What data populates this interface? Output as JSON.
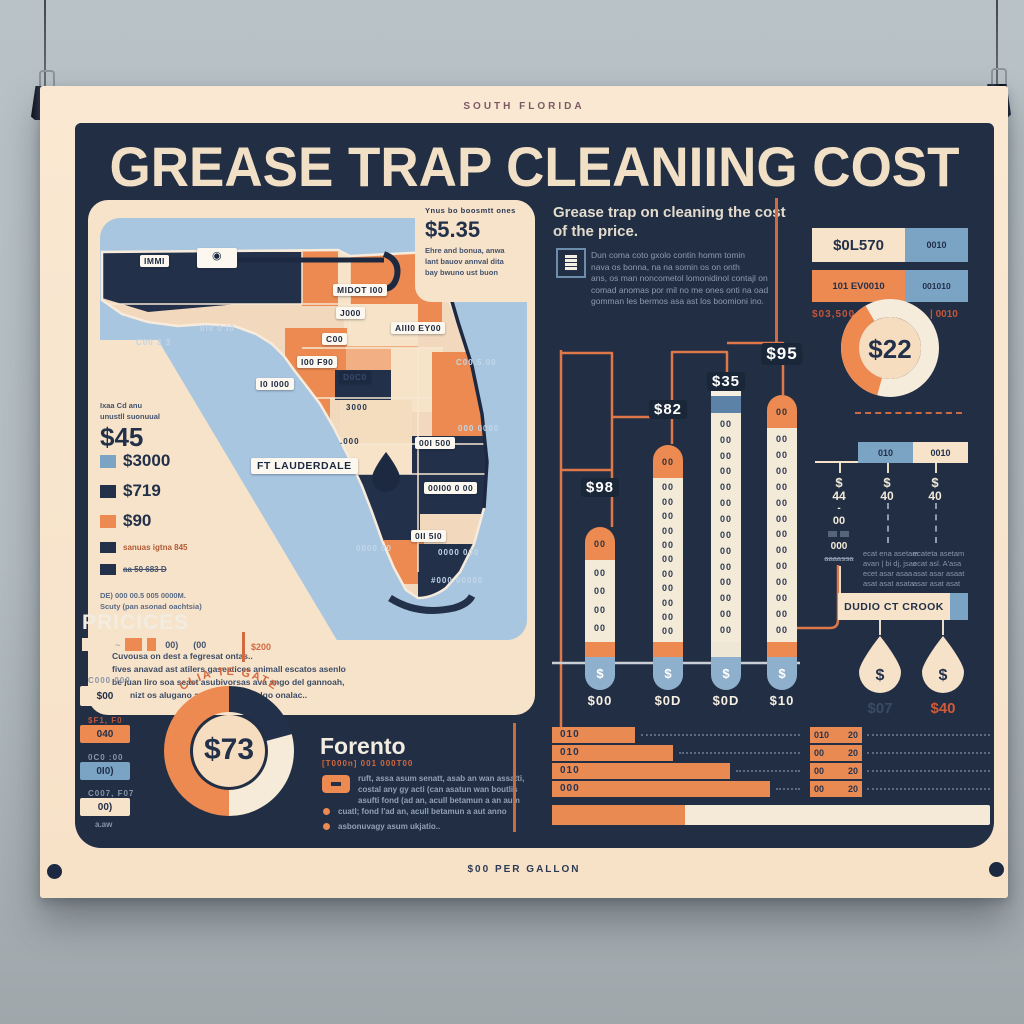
{
  "colors": {
    "navy": "#212e44",
    "cream": "#f7e3c9",
    "orange": "#ec8a51",
    "blue": "#7ba3c4",
    "water": "#a9c6e0",
    "wall": "#b3bcc0",
    "accent_red": "#d3693f"
  },
  "poster": {
    "top_label": "SOUTH FLORIDA",
    "title": "GREASE TRAP  CLEANIING COST",
    "footer_note": "$00 PER GALLON"
  },
  "map_panel": {
    "info_box": {
      "kicker": "Ynus bo boosmtt ones",
      "price": "$5.35",
      "lines": [
        "Ehre and bonua, anwa",
        "lant bauov annval dita",
        "bay bwuno ust buon"
      ]
    },
    "stat": {
      "note_lines": [
        "Ixaa Cd anu",
        "unustll suonuual"
      ],
      "price": "$45"
    },
    "legend": [
      {
        "swatch_color": "#7ba3c4",
        "label": "$3000"
      },
      {
        "swatch_color": "#22304a",
        "label": "$719"
      },
      {
        "swatch_color": "#ec8a51",
        "label": "$90"
      },
      {
        "swatch_color": "#22304a",
        "label": "sanuas igtna 845"
      },
      {
        "swatch_color": "#22304a",
        "label": "aa 50 683 D"
      }
    ],
    "footnote_lines": [
      "DE) 000 00.5 005 0000M.",
      "Scuty (pan asonad oachtsia)"
    ],
    "map_labels": [
      "IMMI",
      "MIDOT I00",
      "J000",
      "AIII0 EY00",
      "C00",
      "I00 F90",
      "I0 I000",
      "D0C0",
      "00I 500",
      "FT LAUDERDALE",
      "00I00 0 00",
      "0II 5I0"
    ],
    "map_chip_icon": "◉",
    "water_labels": [
      "0I0 0 I0",
      "C00 3 3",
      "C00.5.00",
      "000 0000",
      "0000 000",
      "#000 00000",
      "0000 00"
    ],
    "land_texts": [
      "3000",
      ".000"
    ],
    "paragraph_lines": [
      "Cuvousa on dest a fegresat ontas..",
      "fives anavad ast atilers gaseatices animall escatos asenlo",
      "be juan liro soa seast asubivorsas ava ango del gannoah,",
      "notanizt os alugano ania onlas gastalgo onalac.."
    ]
  },
  "intro": {
    "heading_lines": [
      "Grease trap on cleaning the cost",
      "of the price."
    ],
    "paragraph_lines": [
      "Dun coma coto gxolo contin homm tomin",
      "nava os bonna, na na somin os on onth",
      "ans, os man noncometol lomonidinol contajl on",
      "comad anomas por mil no me ones onti na oad",
      "gomman les bermos asa ast los boomioni ino."
    ]
  },
  "chart": {
    "bars": [
      {
        "price": "$98",
        "cap": "00",
        "rows": [
          "00",
          "00",
          "00",
          "00"
        ],
        "footer": "$00"
      },
      {
        "price": "$82",
        "cap": "00",
        "rows": [
          "00",
          "00",
          "00",
          "00",
          "00",
          "00",
          "00",
          "00",
          "00",
          "00",
          "00"
        ],
        "footer": "$0D"
      },
      {
        "price": "$35",
        "cap": "",
        "rows": [
          "00",
          "00",
          "00",
          "00",
          "00",
          "00",
          "00",
          "00",
          "00",
          "00",
          "00",
          "00",
          "00",
          "00"
        ],
        "footer": "$0D"
      },
      {
        "price": "$95",
        "cap": "00",
        "rows": [
          "00",
          "00",
          "00",
          "00",
          "00",
          "00",
          "00",
          "00",
          "00",
          "00",
          "00",
          "00",
          "00"
        ],
        "footer": "$10"
      },
      {
        "dollar": "$"
      }
    ]
  },
  "right_top": {
    "row1_left": "$0L570",
    "row1_right": "0010",
    "row2_left": "101 EV0010",
    "row2_right": "001010",
    "caption_left": "$03,500",
    "caption_right": "| 0010",
    "donut_value": "$22"
  },
  "right_mid": {
    "bar_blue": "010",
    "bar_cream": "0010",
    "col1": {
      "head": "$",
      "sub": "44",
      "dash": "-",
      "chip": "00",
      "mini": "000",
      "strike": "aaaassa"
    },
    "col2": {
      "head": "$",
      "sub": "40",
      "rows": [
        "ecat ena asetam",
        "avan | bi dj, jsas",
        "ecet asar asaa",
        "asat asat asata"
      ]
    },
    "col3": {
      "head": "$",
      "sub": "40",
      "rows": [
        "ecateta asetam",
        "ecat asl. A'asa",
        "asat asar asaat",
        "asar asat asat"
      ]
    },
    "banner": "DUDIO CT CROOK",
    "drop_symbol": "$",
    "drop1_label": "$07",
    "drop2_label": "$40"
  },
  "prices": {
    "heading": "PRICICES",
    "swatch_labels": [
      "00)",
      "(00"
    ],
    "divider_label": "$200",
    "items": [
      {
        "caption": "C000 000",
        "chip": "$00"
      },
      {
        "caption": "$F1, F0",
        "chip": "040"
      },
      {
        "caption": "0C0 :00",
        "chip": "0I0)"
      },
      {
        "caption": "C007, F07",
        "chip": "00)"
      }
    ],
    "tail": "a.aw",
    "donut_value": "$73",
    "donut_arc_label": "CLIA TE GATE"
  },
  "forento": {
    "heading": "Forento",
    "subtitle": "[T000n] 001 000T00",
    "lines": [
      "ruft, assa asum senatt, asab an wan assatti,",
      "costal any gy acti (can asatun wan boutlis",
      "asufti fond (ad an, acull betamun a an aum"
    ],
    "bullets": [
      "cuatl; fond l'ad an, acull betamun a aut anno",
      "asbonuvagy asum ukjatio.."
    ]
  },
  "bottom_rows": {
    "rows": [
      {
        "label": "010",
        "v1": "010",
        "v2": "20"
      },
      {
        "label": "010",
        "v1": "00",
        "v2": "20"
      },
      {
        "label": "010",
        "v1": "00",
        "v2": "20"
      },
      {
        "label": "000",
        "v1": "00",
        "v2": "20"
      }
    ]
  },
  "chart_data": [
    {
      "type": "bar",
      "title": "thermometer price bars",
      "categories": [
        "$00",
        "$0D",
        "$0D",
        "$10"
      ],
      "values": [
        98,
        82,
        35,
        95
      ],
      "note": "price labels above bars read $98 $82 $35 $95; rendered bar heights increase left to right approx 163/245/300/295 px",
      "legend_position": "none"
    },
    {
      "type": "pie",
      "title": "$22 donut",
      "center_label": "$22",
      "slices": [
        {
          "label": "orange",
          "pct": 38
        },
        {
          "label": "cream",
          "pct": 62
        }
      ]
    },
    {
      "type": "pie",
      "title": "$73 donut",
      "center_label": "$73",
      "slices": [
        {
          "label": "orange",
          "pct": 50
        },
        {
          "label": "navy",
          "pct": 21
        },
        {
          "label": "cream",
          "pct": 29
        }
      ]
    },
    {
      "type": "bar",
      "title": "bottom horizontal bars",
      "categories": [
        "010",
        "010",
        "010",
        "000"
      ],
      "values": [
        83,
        121,
        178,
        218
      ],
      "note": "pixel widths; progress strip below is ~30% orange, 70% cream"
    }
  ]
}
